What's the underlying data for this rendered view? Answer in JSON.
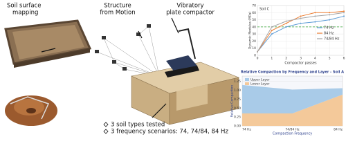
{
  "labels": {
    "soil_mapping": [
      "Soil surface",
      "mapping"
    ],
    "sfm": [
      "Structure",
      "from Motion"
    ],
    "compactor": [
      "Vibratory",
      "plate compactor"
    ]
  },
  "bullets": [
    "3 soil types tested",
    "3 frequency scenarios: 74, 74/84, 84 Hz"
  ],
  "chart_data": [
    {
      "type": "line",
      "title": "Soil C",
      "y_label": "Dynamic Modulus (MPa)",
      "x_label": "Compactor passes",
      "x": [
        0,
        1,
        2,
        3,
        4,
        5,
        6
      ],
      "xlim": [
        0,
        6
      ],
      "xticks": [
        0,
        1,
        2,
        3,
        4,
        5,
        6
      ],
      "ylim": [
        0,
        70
      ],
      "yticks": [
        0,
        10,
        20,
        30,
        40,
        50,
        60,
        70
      ],
      "grid": true,
      "reference_line": {
        "value": 40,
        "color": "#2ca02c"
      },
      "series": [
        {
          "name": "74 Hz",
          "color": "#5b9bd5",
          "values": [
            5,
            30,
            40,
            45,
            47,
            50,
            55
          ]
        },
        {
          "name": "84 Hz",
          "color": "#ed7d31",
          "values": [
            5,
            35,
            45,
            55,
            60,
            60,
            62
          ]
        },
        {
          "name": "74/84 Hz",
          "color": "#a5a5a5",
          "values": [
            5,
            40,
            48,
            52,
            55,
            57,
            60
          ]
        }
      ]
    },
    {
      "type": "stacked_area",
      "title": "Relative Compaction by Frequency and Layer - Soil A",
      "y_label": "Relative Compaction",
      "x_label": "Compaction Frequency",
      "categories": [
        "74 Hz",
        "74/84 Hz",
        "84 Hz"
      ],
      "ylim": [
        0,
        1.4
      ],
      "yticks": [
        {
          "value": 0,
          "label": "0.00"
        },
        {
          "value": 0.25,
          "label": "0.25"
        },
        {
          "value": 0.5,
          "label": "0.50"
        },
        {
          "value": 0.75,
          "label": "0.75"
        },
        {
          "value": 1,
          "label": "1.00"
        },
        {
          "value": 1.25,
          "label": "1.25"
        }
      ],
      "series": [
        {
          "name": "Lower Layer",
          "color": "#f4c99a",
          "values": [
            0.35,
            0.35,
            0.88
          ]
        },
        {
          "name": "Upper Layer",
          "color": "#a9cbe8",
          "values": [
            0.8,
            0.67,
            0.18
          ]
        }
      ]
    }
  ]
}
